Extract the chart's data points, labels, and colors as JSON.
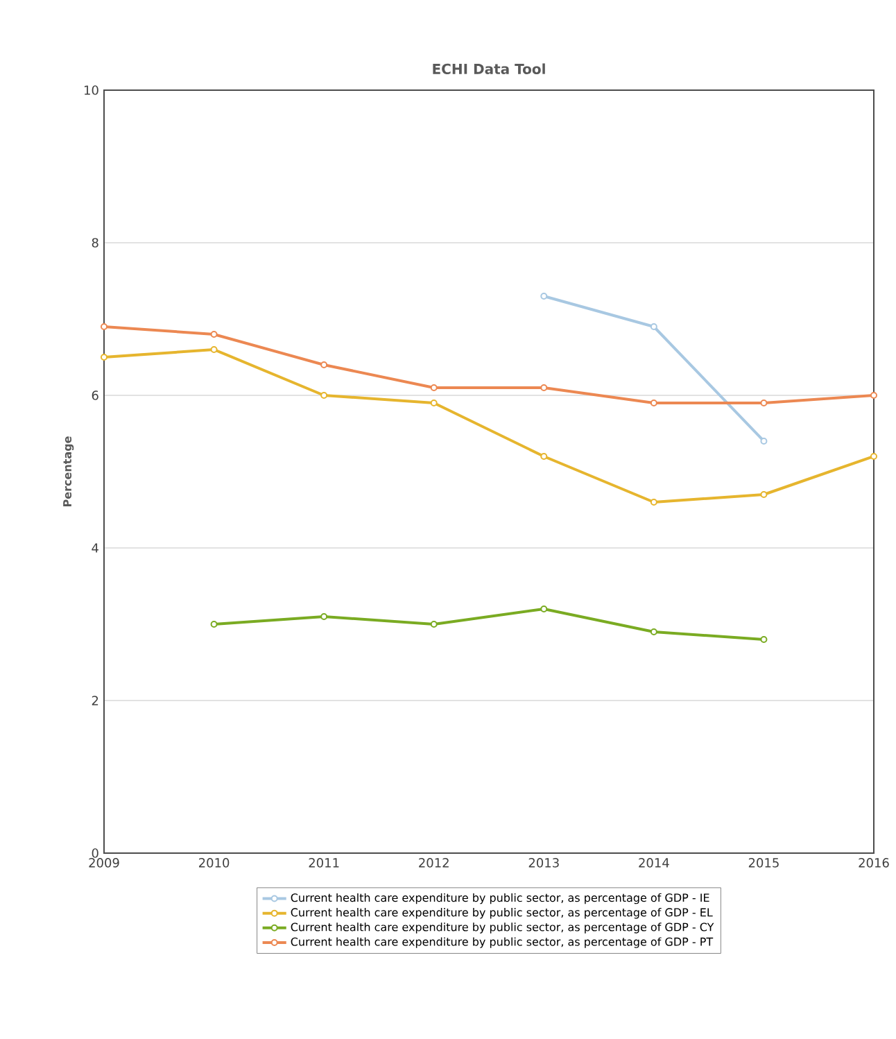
{
  "chart_data": {
    "type": "line",
    "title": "ECHI Data Tool",
    "ylabel": "Percentage",
    "xlim": [
      2009,
      2016
    ],
    "xticks": [
      2009,
      2010,
      2011,
      2012,
      2013,
      2014,
      2015,
      2016
    ],
    "ylim": [
      0,
      10
    ],
    "yticks": [
      0,
      2,
      4,
      6,
      8,
      10
    ],
    "grid": "y",
    "legend": "bottom",
    "marker": "circle",
    "series": [
      {
        "name": "Current health care expenditure by public sector, as percentage of GDP - IE",
        "color": "#a8c8e2",
        "x": [
          2013,
          2014,
          2015
        ],
        "values": [
          7.3,
          6.9,
          5.4
        ]
      },
      {
        "name": "Current health care expenditure by public sector, as percentage of GDP - EL",
        "color": "#e6b52e",
        "x": [
          2009,
          2010,
          2011,
          2012,
          2013,
          2014,
          2015,
          2016
        ],
        "values": [
          6.5,
          6.6,
          6.0,
          5.9,
          5.2,
          4.6,
          4.7,
          5.2
        ]
      },
      {
        "name": "Current health care expenditure by public sector, as percentage of GDP - CY",
        "color": "#7aab22",
        "x": [
          2010,
          2011,
          2012,
          2013,
          2014,
          2015
        ],
        "values": [
          3.0,
          3.1,
          3.0,
          3.2,
          2.9,
          2.8
        ]
      },
      {
        "name": "Current health care expenditure by public sector, as percentage of GDP - PT",
        "color": "#ec8852",
        "x": [
          2009,
          2010,
          2011,
          2012,
          2013,
          2014,
          2015,
          2016
        ],
        "values": [
          6.9,
          6.8,
          6.4,
          6.1,
          6.1,
          5.9,
          5.9,
          6.0
        ]
      }
    ]
  }
}
